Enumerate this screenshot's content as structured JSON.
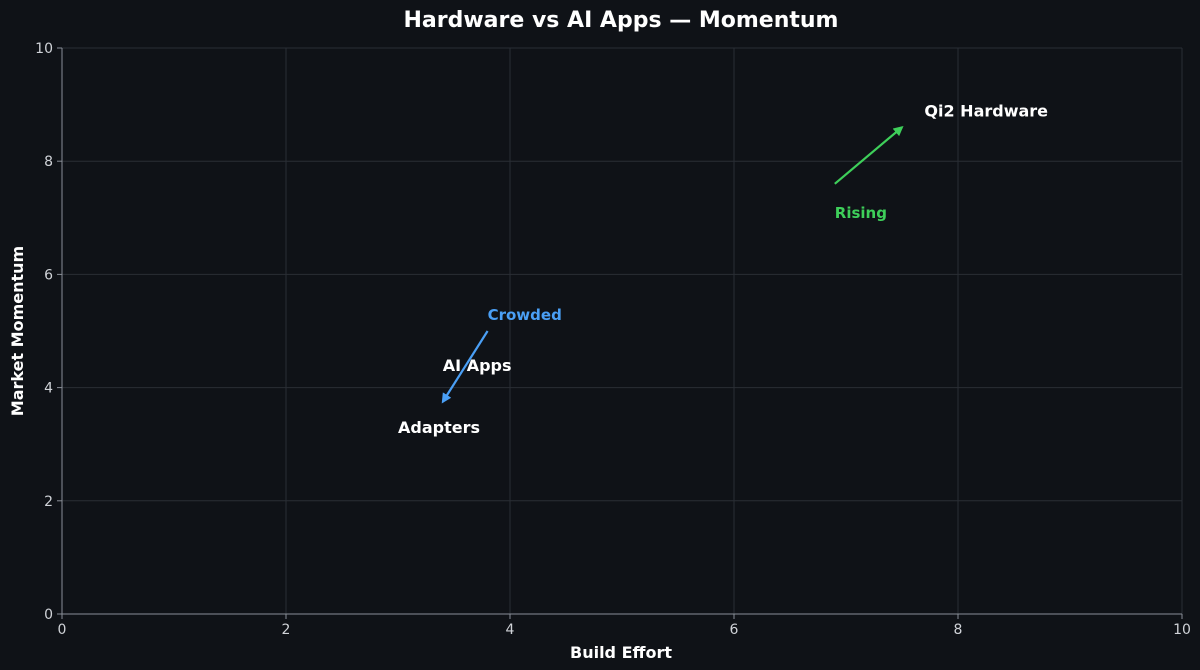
{
  "chart_data": {
    "type": "scatter",
    "title": "Hardware vs AI Apps — Momentum",
    "xlabel": "Build Effort",
    "ylabel": "Market Momentum",
    "xlim": [
      0,
      10
    ],
    "ylim": [
      0,
      10
    ],
    "xticks": [
      "0",
      "2",
      "4",
      "6",
      "8",
      "10"
    ],
    "yticks": [
      "0",
      "2",
      "4",
      "6",
      "8",
      "10"
    ],
    "grid": true,
    "points": [
      {
        "label": "Qi2 Hardware",
        "x": 7.7,
        "y": 8.9
      },
      {
        "label": "AI Apps",
        "x": 3.4,
        "y": 4.4
      },
      {
        "label": "Adapters",
        "x": 3.0,
        "y": 3.3
      }
    ],
    "annotations": [
      {
        "text": "Rising",
        "color": "#3ecf5a",
        "text_x": 6.9,
        "text_y": 7.1,
        "arrow_from": [
          6.9,
          7.6
        ],
        "arrow_to": [
          7.5,
          8.6
        ]
      },
      {
        "text": "Crowded",
        "color": "#4a9ff5",
        "text_x": 3.8,
        "text_y": 5.3,
        "arrow_from": [
          3.8,
          5.0
        ],
        "arrow_to": [
          3.4,
          3.75
        ]
      }
    ],
    "colors": {
      "background": "#0f1217",
      "text": "#ffffff",
      "grid": "#2a2e35"
    }
  }
}
